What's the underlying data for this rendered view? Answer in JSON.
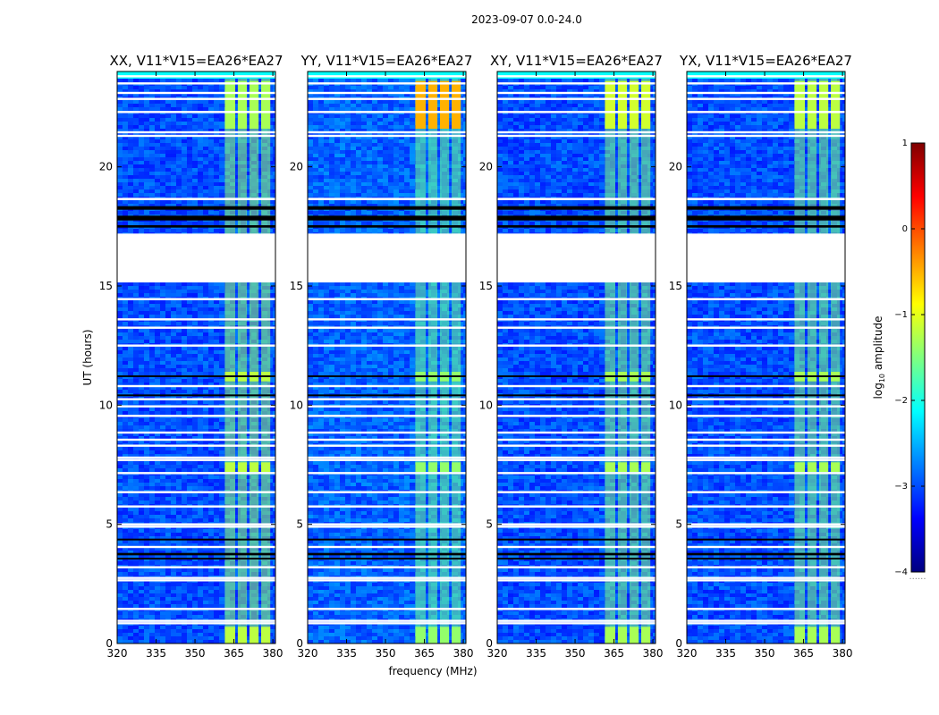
{
  "figure": {
    "suptitle": "2023-09-07 0.0-24.0",
    "ylabel": "UT (hours)",
    "xlabel": "frequency (MHz)",
    "colorbar_label": "log",
    "colorbar_sub": "10",
    "colorbar_label_rest": " amplitude",
    "colorbar_dots": "......"
  },
  "colors": {
    "cmap": [
      "#00007f",
      "#0000ff",
      "#007fff",
      "#00ffff",
      "#7fff7f",
      "#ffff00",
      "#ff7f00",
      "#ff0000",
      "#7f0000"
    ],
    "gap": "#ffffff",
    "flag": "#000000"
  },
  "chart_data": {
    "type": "heatmap",
    "xlim": [
      320,
      381
    ],
    "ylim": [
      0,
      24
    ],
    "xticks": [
      320,
      335,
      350,
      365,
      380
    ],
    "xtick_labels": [
      "320",
      "335",
      "350",
      "365",
      "380"
    ],
    "yticks": [
      0,
      5,
      10,
      15,
      20
    ],
    "ytick_labels": [
      "0",
      "5",
      "10",
      "15",
      "20"
    ],
    "color_range": [
      -4,
      1
    ],
    "colorbar_ticks": [
      1,
      0,
      -1,
      -2,
      -3,
      -4
    ],
    "colorbar_tick_labels": [
      "1",
      "0",
      "−1",
      "−2",
      "−3",
      "−4"
    ],
    "panels": [
      {
        "title": "XX, V11*V15=EA26*EA27",
        "base_level": -3.0,
        "band_level": -1.4,
        "high_level": -1.3
      },
      {
        "title": "YY, V11*V15=EA26*EA27",
        "base_level": -2.9,
        "band_level": -1.6,
        "high_level": -0.5
      },
      {
        "title": "XY, V11*V15=EA26*EA27",
        "base_level": -3.0,
        "band_level": -1.5,
        "high_level": -1.1
      },
      {
        "title": "YX, V11*V15=EA26*EA27",
        "base_level": -3.0,
        "band_level": -1.5,
        "high_level": -1.2
      }
    ],
    "rfi_band_mhz": [
      [
        361.5,
        365.5
      ],
      [
        366.5,
        370
      ],
      [
        371,
        374.5
      ],
      [
        375.5,
        379
      ]
    ],
    "no_data_hours": [
      [
        15.15,
        17.2
      ],
      [
        18.6,
        18.7
      ]
    ],
    "flagged_hours": [
      [
        17.45,
        17.55
      ],
      [
        17.75,
        17.95
      ],
      [
        18.2,
        18.35
      ],
      [
        3.7,
        3.8
      ],
      [
        3.55,
        3.6
      ],
      [
        4.35,
        4.4
      ],
      [
        10.4,
        10.45
      ],
      [
        11.2,
        11.25
      ]
    ],
    "white_gap_hours": [
      0.85,
      0.95,
      1.45,
      2.65,
      2.75,
      3.2,
      4.05,
      4.9,
      5.0,
      5.75,
      6.35,
      7.15,
      7.7,
      7.8,
      8.3,
      8.55,
      8.85,
      9.55,
      9.95,
      10.25,
      10.8,
      12.5,
      13.25,
      13.6,
      14.45,
      21.3,
      21.45,
      22.3,
      22.85,
      23.1,
      23.5,
      23.8
    ]
  }
}
